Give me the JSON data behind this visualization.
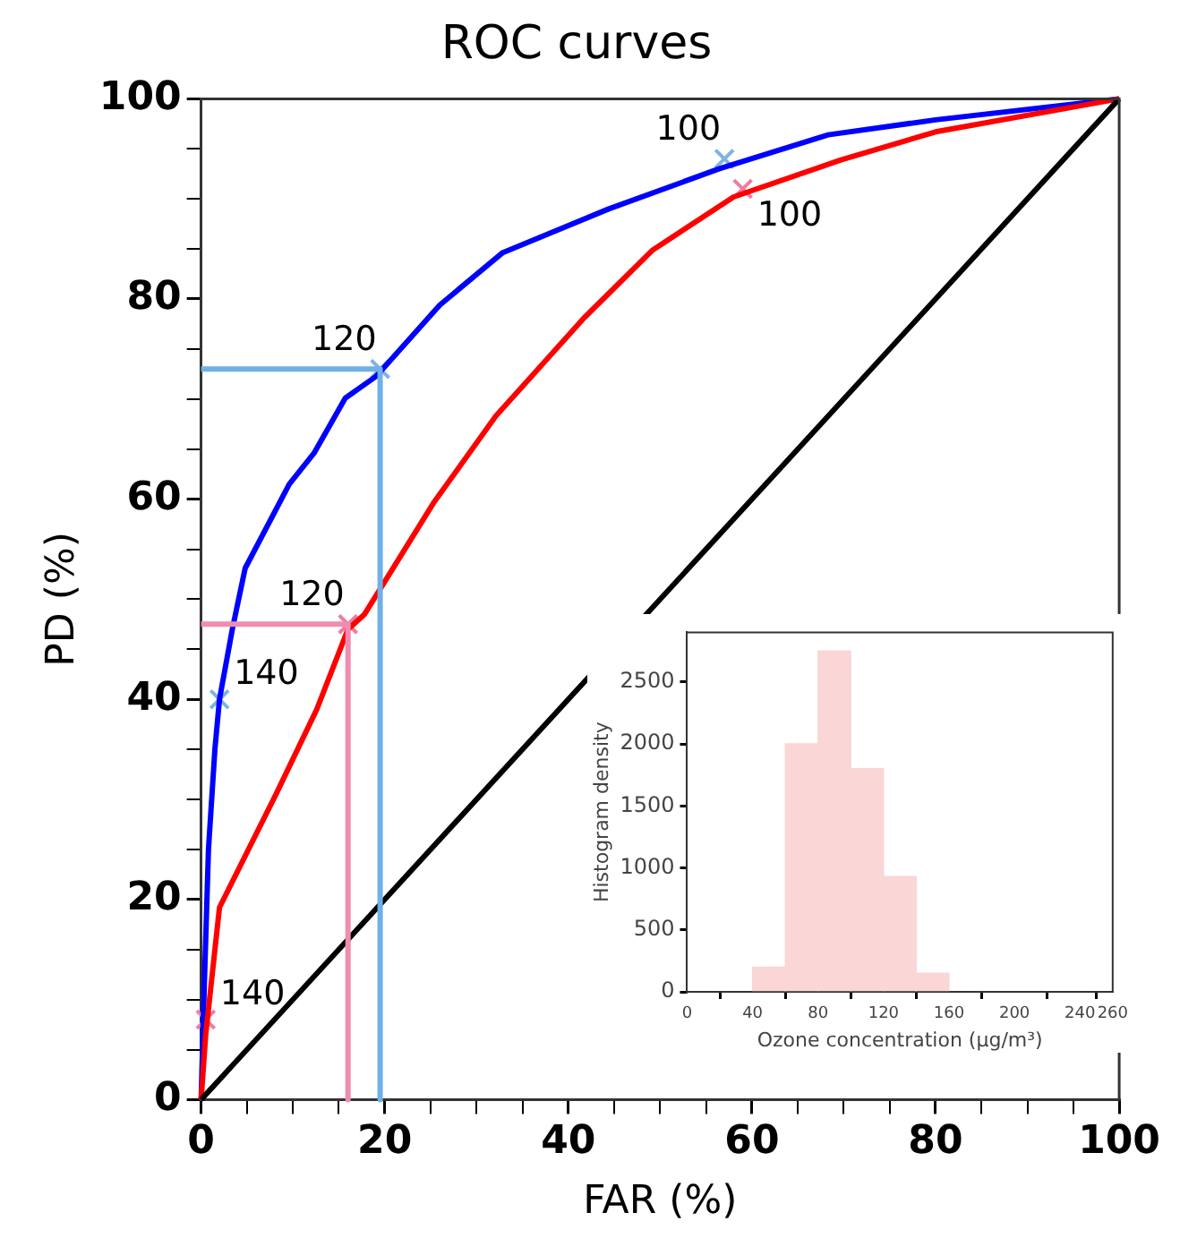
{
  "chart_data": [
    {
      "type": "line",
      "title": "ROC curves",
      "xlabel": "FAR (%)",
      "ylabel": "PD (%)",
      "xlim": [
        0,
        100
      ],
      "ylim": [
        0,
        100
      ],
      "xticks": [
        0,
        {
          "value": 5,
          "label": null
        },
        {
          "value": 10,
          "label": null
        },
        {
          "value": 15,
          "label": null
        },
        20,
        {
          "value": 25,
          "label": null
        },
        {
          "value": 30,
          "label": null
        },
        {
          "value": 35,
          "label": null
        },
        40,
        {
          "value": 45,
          "label": null
        },
        {
          "value": 50,
          "label": null
        },
        {
          "value": 55,
          "label": null
        },
        60,
        {
          "value": 65,
          "label": null
        },
        {
          "value": 70,
          "label": null
        },
        {
          "value": 75,
          "label": null
        },
        80,
        {
          "value": 85,
          "label": null
        },
        {
          "value": 90,
          "label": null
        },
        {
          "value": 95,
          "label": null
        },
        100
      ],
      "yticks": [
        0,
        {
          "value": 5,
          "label": null
        },
        {
          "value": 10,
          "label": null
        },
        {
          "value": 15,
          "label": null
        },
        20,
        {
          "value": 25,
          "label": null
        },
        {
          "value": 30,
          "label": null
        },
        {
          "value": 35,
          "label": null
        },
        40,
        {
          "value": 45,
          "label": null
        },
        {
          "value": 50,
          "label": null
        },
        {
          "value": 55,
          "label": null
        },
        60,
        {
          "value": 65,
          "label": null
        },
        {
          "value": 70,
          "label": null
        },
        {
          "value": 75,
          "label": null
        },
        80,
        {
          "value": 85,
          "label": null
        },
        {
          "value": 90,
          "label": null
        },
        {
          "value": 95,
          "label": null
        },
        100
      ],
      "grid": false,
      "legend": false,
      "series": [
        {
          "type": "line",
          "color": "#6fb0e8",
          "marker": "none",
          "x": [
            0,
            19.5,
            19.5
          ],
          "values": [
            73,
            73,
            0
          ]
        },
        {
          "type": "line",
          "color": "#f08cb0",
          "marker": "none",
          "x": [
            0,
            16,
            16
          ],
          "values": [
            47.5,
            47.5,
            0
          ]
        },
        {
          "type": "line",
          "color": "#000000",
          "marker": "none",
          "x": [
            0,
            100
          ],
          "values": [
            0,
            100
          ]
        },
        {
          "type": "line",
          "color": "#ff0000",
          "marker": "none",
          "x": [
            0,
            0.5,
            2,
            8.2,
            12.6,
            16,
            17.8,
            25.3,
            32.1,
            41.7,
            49.2,
            58,
            69.7,
            80,
            100
          ],
          "values": [
            0,
            6.5,
            19.2,
            30.6,
            39,
            47,
            48.5,
            59.6,
            68.3,
            78.1,
            84.9,
            90.2,
            93.9,
            96.7,
            100
          ]
        },
        {
          "type": "line",
          "color": "#0000ff",
          "marker": "none",
          "x": [
            0,
            0.3,
            0.8,
            1.5,
            2,
            3.4,
            4.8,
            9.6,
            12.3,
            15.7,
            19.1,
            26,
            32.8,
            44.4,
            56.4,
            68.3,
            80,
            100
          ],
          "values": [
            0,
            10,
            25,
            35,
            40,
            47,
            53.1,
            61.5,
            64.6,
            70.1,
            72.3,
            79.4,
            84.6,
            89,
            93,
            96.4,
            97.9,
            100
          ]
        },
        {
          "type": "scatter",
          "color": "#7fb2e5",
          "marker": "cross",
          "x": [
            2,
            19.5,
            57
          ],
          "values": [
            40,
            73,
            94
          ]
        },
        {
          "type": "scatter",
          "color": "#f07ca0",
          "marker": "cross",
          "x": [
            0.5,
            16,
            59
          ],
          "values": [
            8,
            47.5,
            91
          ]
        }
      ],
      "annotations": [
        {
          "text": "140",
          "x": 2,
          "y": 40
        },
        {
          "text": "120",
          "x": 19.5,
          "y": 73
        },
        {
          "text": "100",
          "x": 57,
          "y": 94
        },
        {
          "text": "140",
          "x": 0.5,
          "y": 8
        },
        {
          "text": "120",
          "x": 16,
          "y": 47.5
        },
        {
          "text": "100",
          "x": 59,
          "y": 91
        }
      ]
    },
    {
      "type": "histogram",
      "xlabel": "Ozone concentration (μg/m³)",
      "ylabel": "Histogram density",
      "color": "#fad6d6",
      "bins": [
        40,
        60,
        80,
        100,
        120,
        140,
        160
      ],
      "values": [
        200,
        2000,
        2750,
        1800,
        930,
        150
      ],
      "xlim": [
        0,
        260
      ],
      "ylim": [
        0,
        2900
      ],
      "xticks": [
        0,
        40,
        80,
        120,
        160,
        200,
        240,
        260
      ],
      "yticks": [
        0,
        500,
        1000,
        1500,
        2000,
        2500
      ],
      "grid": false,
      "legend": false
    }
  ]
}
